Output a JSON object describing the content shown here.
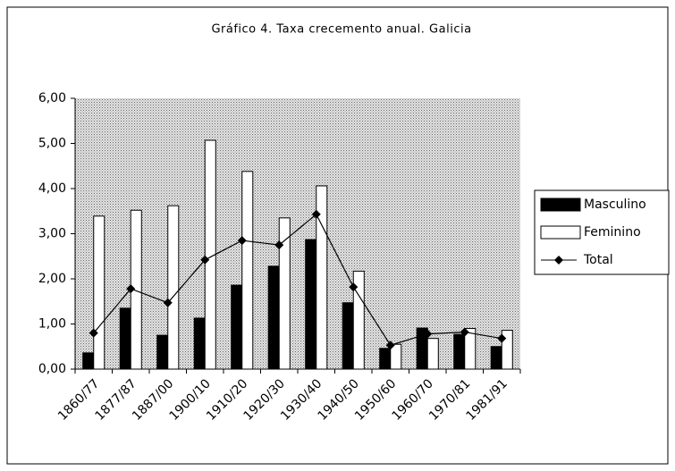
{
  "chart_data": {
    "type": "bar",
    "title": "Gráfico 4. Taxa crecemento anual. Galicia",
    "categories": [
      "1860/77",
      "1877/87",
      "1887/00",
      "1900/10",
      "1910/20",
      "1920/30",
      "1930/40",
      "1940/50",
      "1950/60",
      "1960/70",
      "1970/81",
      "1981/91"
    ],
    "series": [
      {
        "name": "Masculino",
        "color": "#000000",
        "values": [
          0.36,
          1.35,
          0.75,
          1.13,
          1.86,
          2.28,
          2.87,
          1.47,
          0.46,
          0.91,
          0.77,
          0.5
        ]
      },
      {
        "name": "Feminino",
        "color": "#ffffff",
        "values": [
          3.39,
          3.52,
          3.62,
          5.07,
          4.38,
          3.35,
          4.06,
          2.17,
          0.55,
          0.68,
          0.9,
          0.86
        ]
      },
      {
        "name": "Total",
        "color": "#000000",
        "type": "line",
        "values": [
          0.8,
          1.78,
          1.47,
          2.42,
          2.85,
          2.75,
          3.43,
          1.82,
          0.53,
          0.78,
          0.82,
          0.68
        ]
      }
    ],
    "ylim": [
      0,
      6
    ],
    "yticks": [
      {
        "value": 0,
        "label": "0,00"
      },
      {
        "value": 1,
        "label": "1,00"
      },
      {
        "value": 2,
        "label": "2,00"
      },
      {
        "value": 3,
        "label": "3,00"
      },
      {
        "value": 4,
        "label": "4,00"
      },
      {
        "value": 5,
        "label": "5,00"
      },
      {
        "value": 6,
        "label": "6,00"
      }
    ],
    "grid": false,
    "legend": "right"
  }
}
